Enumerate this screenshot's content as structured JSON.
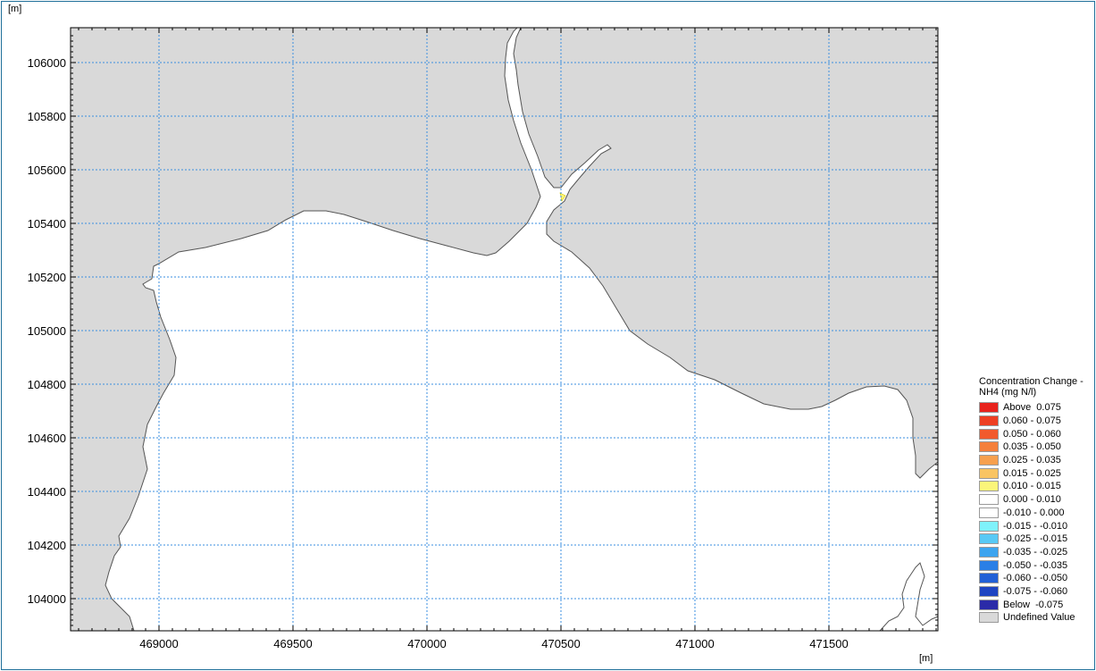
{
  "map": {
    "y_unit_label": "[m]",
    "x_unit_label": "[m]",
    "x_axis": {
      "min": 468650,
      "max": 471900,
      "ticks": [
        "469000",
        "469500",
        "470000",
        "470500",
        "471000",
        "471500"
      ]
    },
    "y_axis": {
      "min": 103880,
      "max": 106130,
      "ticks": [
        "106000",
        "105800",
        "105600",
        "105400",
        "105200",
        "105000",
        "104800",
        "104600",
        "104400",
        "104200",
        "104000"
      ]
    },
    "grid": true,
    "land_color": "#d9d9d9",
    "water_color": "#ffffff",
    "gridline_color": "#3b8fe0"
  },
  "legend": {
    "title": "Concentration Change - NH4 (mg N/l)",
    "items": [
      {
        "label": "Above  0.075",
        "color": "#e8231d"
      },
      {
        "label": "0.060 - 0.075",
        "color": "#ee3f22"
      },
      {
        "label": "0.050 - 0.060",
        "color": "#f25a2d"
      },
      {
        "label": "0.035 - 0.050",
        "color": "#f5803b"
      },
      {
        "label": "0.025 - 0.035",
        "color": "#f7a04e"
      },
      {
        "label": "0.015 - 0.025",
        "color": "#f9c462"
      },
      {
        "label": "0.010 - 0.015",
        "color": "#fbf57a"
      },
      {
        "label": "0.000 - 0.010",
        "color": "#ffffff"
      },
      {
        "label": "-0.010 - 0.000",
        "color": "#ffffff"
      },
      {
        "label": "-0.015 - -0.010",
        "color": "#7ff2fb"
      },
      {
        "label": "-0.025 - -0.015",
        "color": "#58c9f5"
      },
      {
        "label": "-0.035 - -0.025",
        "color": "#3da4ef"
      },
      {
        "label": "-0.050 - -0.035",
        "color": "#2a7fe6"
      },
      {
        "label": "-0.060 - -0.050",
        "color": "#2260d6"
      },
      {
        "label": "-0.075 - -0.060",
        "color": "#1f45c2"
      },
      {
        "label": "Below  -0.075",
        "color": "#2a2aa8"
      },
      {
        "label": "Undefined Value",
        "color": "#d9d9d9"
      }
    ]
  }
}
